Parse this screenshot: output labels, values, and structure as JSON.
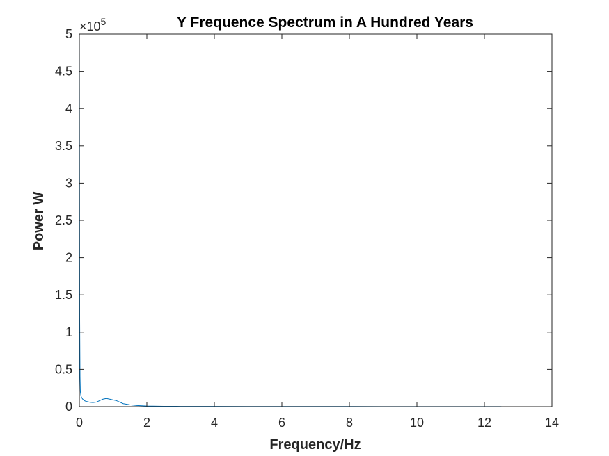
{
  "chart_data": {
    "type": "line",
    "title": "Y Frequence Spectrum in A Hundred Years",
    "xlabel": "Frequency/Hz",
    "ylabel": "Power W",
    "xlim": [
      0,
      14
    ],
    "ylim": [
      0,
      500000
    ],
    "x_ticks": [
      0,
      2,
      4,
      6,
      8,
      10,
      12,
      14
    ],
    "x_tick_labels": [
      "0",
      "2",
      "4",
      "6",
      "8",
      "10",
      "12",
      "14"
    ],
    "y_ticks": [
      0,
      50000,
      100000,
      150000,
      200000,
      250000,
      300000,
      350000,
      400000,
      450000,
      500000
    ],
    "y_tick_labels": [
      "0",
      "0.5",
      "1",
      "1.5",
      "2",
      "2.5",
      "3",
      "3.5",
      "4",
      "4.5",
      "5"
    ],
    "y_exponent_label": {
      "prefix": "×10",
      "power": "5"
    },
    "grid": false,
    "box": true,
    "series": [
      {
        "color": "#0072BD",
        "x": [
          0,
          0.01,
          0.02,
          0.03,
          0.05,
          0.07,
          0.1,
          0.15,
          0.2,
          0.3,
          0.4,
          0.5,
          0.6,
          0.7,
          0.8,
          0.9,
          1.0,
          1.1,
          1.2,
          1.3,
          1.5,
          1.7,
          2.0,
          2.5,
          3,
          4,
          5,
          6,
          7,
          8,
          9,
          10,
          11,
          12,
          12.5
        ],
        "y": [
          500000,
          120000,
          40000,
          20000,
          14000,
          12000,
          10000,
          8000,
          7000,
          6000,
          5500,
          6000,
          8000,
          10000,
          11000,
          10000,
          9000,
          8000,
          6000,
          4000,
          2500,
          1500,
          800,
          500,
          400,
          300,
          250,
          200,
          200,
          200,
          150,
          150,
          150,
          150,
          150
        ]
      }
    ]
  }
}
